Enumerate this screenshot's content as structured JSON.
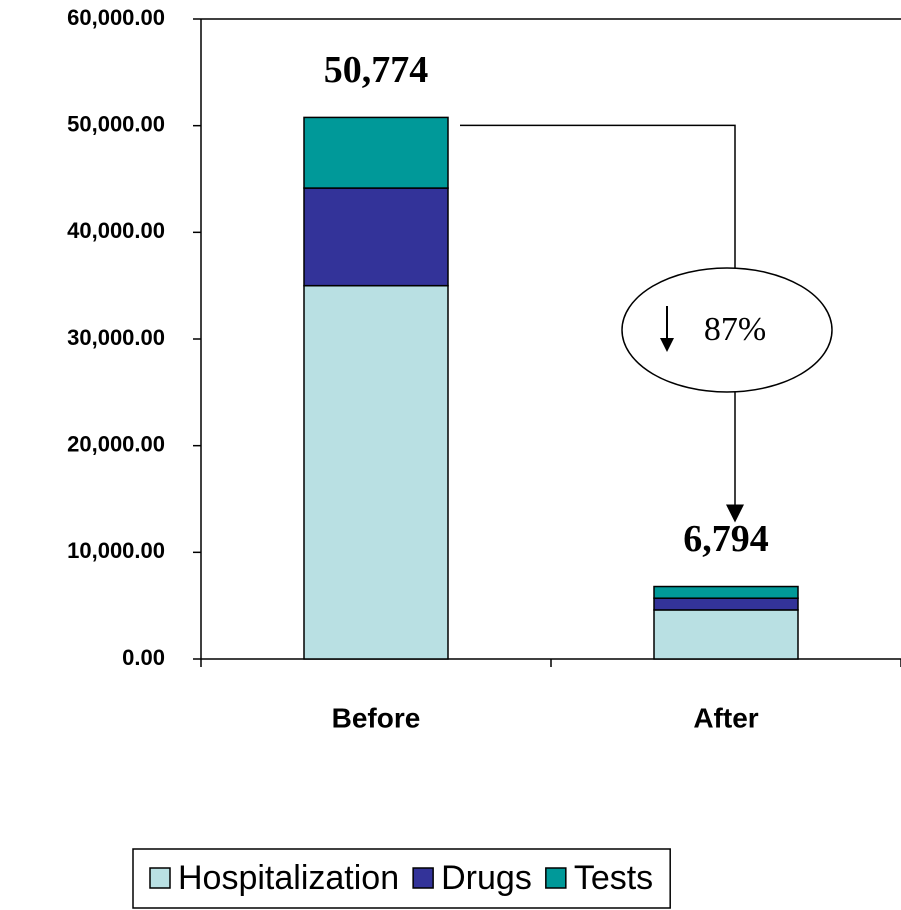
{
  "chart_data": {
    "type": "stacked_bar",
    "categories": [
      "Before",
      "After"
    ],
    "series": [
      {
        "name": "Hospitalization",
        "color": "#b9e0e3",
        "values": [
          35000,
          4600
        ]
      },
      {
        "name": "Drugs",
        "color": "#333399",
        "values": [
          9150,
          1100
        ]
      },
      {
        "name": "Tests",
        "color": "#009999",
        "values": [
          6624,
          1094
        ]
      }
    ],
    "totals": [
      50774,
      6794
    ],
    "total_labels": [
      "50,774",
      "6,794"
    ],
    "annotation": "87%",
    "ylim": [
      0,
      60000
    ],
    "yticks": [
      {
        "value": 0,
        "label": "0.00"
      },
      {
        "value": 10000,
        "label": "10,000.00"
      },
      {
        "value": 20000,
        "label": "20,000.00"
      },
      {
        "value": 30000,
        "label": "30,000.00"
      },
      {
        "value": 40000,
        "label": "40,000.00"
      },
      {
        "value": 50000,
        "label": "50,000.00"
      },
      {
        "value": 60000,
        "label": "60,000.00"
      }
    ],
    "legend": "bottom"
  }
}
